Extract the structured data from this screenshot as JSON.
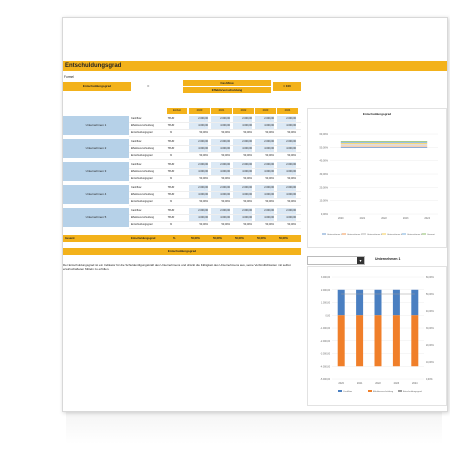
{
  "sheet": {
    "title": "Entschuldungsgrad",
    "formula_label": "Formel",
    "formula": {
      "left": "Entschuldungsgrad",
      "eq": "=",
      "numerator": "Cashflow",
      "denominator": "Effektivverschuldung",
      "times": "× 100"
    },
    "unit_header": "Einheit",
    "years": [
      "2020",
      "2021",
      "2022",
      "2023",
      "2024"
    ],
    "companies": [
      {
        "name": "Unternehmen 1",
        "rows": [
          {
            "label": "Cashflow",
            "unit": "T€UR",
            "values": [
              "2.000,00",
              "2.000,00",
              "2.000,00",
              "2.000,00",
              "2.000,00"
            ]
          },
          {
            "label": "Effektivverschuldung",
            "unit": "T€UR",
            "values": [
              "4.000,00",
              "4.000,00",
              "4.000,00",
              "4.000,00",
              "4.000,00"
            ]
          },
          {
            "label": "Entschuldungsgrad",
            "unit": "%",
            "values": [
              "50,00%",
              "50,00%",
              "50,00%",
              "50,00%",
              "50,00%"
            ]
          }
        ]
      },
      {
        "name": "Unternehmen 2",
        "rows": [
          {
            "label": "Cashflow",
            "unit": "T€UR",
            "values": [
              "2.000,00",
              "2.000,00",
              "2.000,00",
              "2.000,00",
              "2.000,00"
            ]
          },
          {
            "label": "Effektivverschuldung",
            "unit": "T€UR",
            "values": [
              "4.000,00",
              "4.000,00",
              "4.000,00",
              "4.000,00",
              "4.000,00"
            ]
          },
          {
            "label": "Entschuldungsgrad",
            "unit": "%",
            "values": [
              "50,00%",
              "50,00%",
              "50,00%",
              "50,00%",
              "50,00%"
            ]
          }
        ]
      },
      {
        "name": "Unternehmen 3",
        "rows": [
          {
            "label": "Cashflow",
            "unit": "T€UR",
            "values": [
              "2.000,00",
              "2.000,00",
              "2.000,00",
              "2.000,00",
              "2.000,00"
            ]
          },
          {
            "label": "Effektivverschuldung",
            "unit": "T€UR",
            "values": [
              "4.000,00",
              "4.000,00",
              "4.000,00",
              "4.000,00",
              "4.000,00"
            ]
          },
          {
            "label": "Entschuldungsgrad",
            "unit": "%",
            "values": [
              "50,00%",
              "50,00%",
              "50,00%",
              "50,00%",
              "50,00%"
            ]
          }
        ]
      },
      {
        "name": "Unternehmen 4",
        "rows": [
          {
            "label": "Cashflow",
            "unit": "T€UR",
            "values": [
              "2.000,00",
              "2.000,00",
              "2.000,00",
              "2.000,00",
              "2.000,00"
            ]
          },
          {
            "label": "Effektivverschuldung",
            "unit": "T€UR",
            "values": [
              "4.000,00",
              "4.000,00",
              "4.000,00",
              "4.000,00",
              "4.000,00"
            ]
          },
          {
            "label": "Entschuldungsgrad",
            "unit": "%",
            "values": [
              "50,00%",
              "50,00%",
              "50,00%",
              "50,00%",
              "50,00%"
            ]
          }
        ]
      },
      {
        "name": "Unternehmen 5",
        "rows": [
          {
            "label": "Cashflow",
            "unit": "T€UR",
            "values": [
              "2.000,00",
              "2.000,00",
              "2.000,00",
              "2.000,00",
              "2.000,00"
            ]
          },
          {
            "label": "Effektivverschuldung",
            "unit": "T€UR",
            "values": [
              "4.000,00",
              "4.000,00",
              "4.000,00",
              "4.000,00",
              "4.000,00"
            ]
          },
          {
            "label": "Entschuldungsgrad",
            "unit": "%",
            "values": [
              "50,00%",
              "50,00%",
              "50,00%",
              "50,00%",
              "50,00%"
            ]
          }
        ]
      }
    ],
    "total": {
      "label": "Gesamt",
      "metric": "Entschuldungsgrad",
      "unit": "%",
      "values": [
        "50,00%",
        "50,00%",
        "50,00%",
        "50,00%",
        "50,00%"
      ]
    },
    "section2_title": "Entschuldungsgrad",
    "description": "Der Entschuldungsgrad ist ein Indikator für die Schuldentilgungskraft des Unternehmens und drückt die Fähigkeit des Unternehmens aus, seine Verbindlichkeiten mit selbst erwirtschafteten Mitteln zu erfüllen.",
    "dropdown": {
      "value": "Unternehmen 1",
      "label": "Unternehmen 1"
    },
    "colors": {
      "accent": "#f3b21b",
      "company_fill": "#b6d1e8",
      "bar_blue": "#4a7fc1",
      "bar_orange": "#f07f2a",
      "line_gray": "#9e9e9e"
    }
  },
  "chart_data": [
    {
      "type": "line",
      "title": "Entschuldungsgrad",
      "categories": [
        "2020",
        "2021",
        "2022",
        "2023",
        "2024"
      ],
      "series": [
        {
          "name": "Unternehmen 1",
          "values": [
            50,
            50,
            50,
            50,
            50
          ],
          "color": "#4a7fc1"
        },
        {
          "name": "Unternehmen 2",
          "values": [
            50,
            50,
            50,
            50,
            50
          ],
          "color": "#f07f2a"
        },
        {
          "name": "Unternehmen 3",
          "values": [
            50,
            50,
            50,
            50,
            50
          ],
          "color": "#a5a5a5"
        },
        {
          "name": "Unternehmen 4",
          "values": [
            50,
            50,
            50,
            50,
            50
          ],
          "color": "#f3c12c"
        },
        {
          "name": "Unternehmen 5",
          "values": [
            50,
            50,
            50,
            50,
            50
          ],
          "color": "#5b9bd5"
        },
        {
          "name": "Gesamt",
          "values": [
            50,
            50,
            50,
            50,
            50
          ],
          "color": "#70ad47"
        }
      ],
      "ylim": [
        0,
        60
      ],
      "yticks": [
        "0,00%",
        "10,00%",
        "20,00%",
        "30,00%",
        "40,00%",
        "50,00%",
        "60,00%"
      ],
      "legend": "bottom"
    },
    {
      "type": "bar",
      "title": "Unternehmen 1",
      "categories": [
        "2020",
        "2021",
        "2022",
        "2023",
        "2024"
      ],
      "series": [
        {
          "name": "Cashflow",
          "values": [
            2000,
            2000,
            2000,
            2000,
            2000
          ],
          "color": "#4a7fc1"
        },
        {
          "name": "Effektivverschuldung",
          "values": [
            -4000,
            -4000,
            -4000,
            -4000,
            -4000
          ],
          "color": "#f07f2a"
        },
        {
          "name": "Entschuldungsgrad",
          "values": [
            50,
            50,
            50,
            50,
            50
          ],
          "color": "#9e9e9e"
        }
      ],
      "ylim": [
        -5000,
        3000
      ],
      "yticks_left": [
        "-5.000,00",
        "-4.000,00",
        "-3.000,00",
        "-2.000,00",
        "-1.000,00",
        "0,00",
        "1.000,00",
        "2.000,00",
        "3.000,00"
      ],
      "yticks_right": [
        "0,00%",
        "10,00%",
        "20,00%",
        "30,00%",
        "40,00%",
        "50,00%",
        "60,00%"
      ],
      "legend": "bottom"
    }
  ]
}
